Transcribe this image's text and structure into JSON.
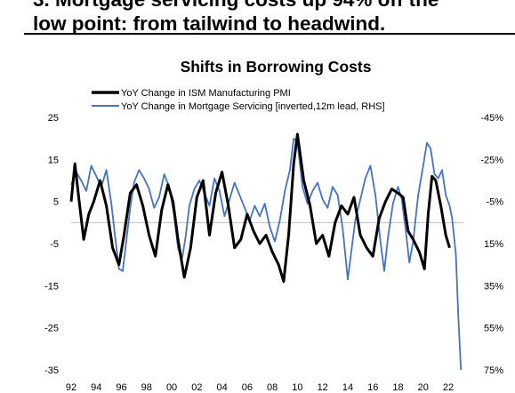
{
  "headline": {
    "line1": "3. Mortgage servicing costs up 94% off the",
    "line2": "low point: from tailwind to headwind."
  },
  "chart_data": {
    "type": "line",
    "title": "Shifts in Borrowing Costs",
    "legend_position": "top-left",
    "x_ticks": [
      "92",
      "94",
      "96",
      "98",
      "00",
      "02",
      "04",
      "06",
      "08",
      "10",
      "12",
      "14",
      "16",
      "18",
      "20",
      "22"
    ],
    "y_left": {
      "range": [
        -35,
        25
      ],
      "ticks": [
        "25",
        "15",
        "5",
        "-5",
        "-15",
        "-25",
        "-35"
      ]
    },
    "y_right": {
      "inverted": true,
      "range": [
        -45,
        75
      ],
      "unit": "%",
      "ticks": [
        "-45%",
        "-25%",
        "-5%",
        "15%",
        "35%",
        "55%",
        "75%"
      ]
    },
    "series": [
      {
        "name": "YoY Change in ISM Manufacturing PMI",
        "color": "#000000",
        "axis": "left",
        "points": [
          [
            1992,
            5
          ],
          [
            1992.3,
            14
          ],
          [
            1992.6,
            6
          ],
          [
            1993,
            -4
          ],
          [
            1993.4,
            2
          ],
          [
            1993.8,
            5
          ],
          [
            1994.3,
            10
          ],
          [
            1994.8,
            4
          ],
          [
            1995.3,
            -6
          ],
          [
            1995.8,
            -10
          ],
          [
            1996.2,
            -3
          ],
          [
            1996.7,
            7
          ],
          [
            1997.2,
            9
          ],
          [
            1997.7,
            4
          ],
          [
            1998.2,
            -3
          ],
          [
            1998.7,
            -8
          ],
          [
            1999.2,
            3
          ],
          [
            1999.7,
            9
          ],
          [
            2000.1,
            5
          ],
          [
            2000.5,
            -4
          ],
          [
            2001,
            -13
          ],
          [
            2001.5,
            -6
          ],
          [
            2002,
            6
          ],
          [
            2002.5,
            10
          ],
          [
            2003,
            -3
          ],
          [
            2003.5,
            7
          ],
          [
            2004,
            12
          ],
          [
            2004.5,
            4
          ],
          [
            2005,
            -6
          ],
          [
            2005.5,
            -4
          ],
          [
            2006,
            2
          ],
          [
            2006.5,
            -2
          ],
          [
            2007,
            -5
          ],
          [
            2007.5,
            -3
          ],
          [
            2008,
            -7
          ],
          [
            2008.5,
            -10
          ],
          [
            2008.9,
            -14
          ],
          [
            2009.3,
            -3
          ],
          [
            2009.7,
            14
          ],
          [
            2010,
            21
          ],
          [
            2010.5,
            10
          ],
          [
            2011,
            4
          ],
          [
            2011.5,
            -5
          ],
          [
            2012,
            -3
          ],
          [
            2012.5,
            -8
          ],
          [
            2013,
            0
          ],
          [
            2013.5,
            4
          ],
          [
            2014,
            2
          ],
          [
            2014.5,
            6
          ],
          [
            2015,
            -3
          ],
          [
            2015.5,
            -6
          ],
          [
            2016,
            -8
          ],
          [
            2016.5,
            1
          ],
          [
            2017,
            5
          ],
          [
            2017.5,
            8
          ],
          [
            2018,
            7
          ],
          [
            2018.4,
            6
          ],
          [
            2018.8,
            -2
          ],
          [
            2019.2,
            -4
          ],
          [
            2019.7,
            -7
          ],
          [
            2020.1,
            -11
          ],
          [
            2020.4,
            2
          ],
          [
            2020.7,
            11
          ],
          [
            2021,
            10
          ],
          [
            2021.4,
            4
          ],
          [
            2021.8,
            -3
          ],
          [
            2022.1,
            -6
          ]
        ]
      },
      {
        "name": "YoY Change in Mortgage Servicing [inverted,12m lead, RHS]",
        "color": "#4472c4",
        "axis": "right",
        "points": [
          [
            1992,
            -13
          ],
          [
            1992.4,
            -19
          ],
          [
            1992.8,
            -15
          ],
          [
            1993.2,
            -10
          ],
          [
            1993.6,
            -22
          ],
          [
            1994,
            -17
          ],
          [
            1994.4,
            -12
          ],
          [
            1994.8,
            -20
          ],
          [
            1995.2,
            -4
          ],
          [
            1995.5,
            12
          ],
          [
            1995.8,
            27
          ],
          [
            1996.1,
            28
          ],
          [
            1996.4,
            13
          ],
          [
            1996.7,
            -2
          ],
          [
            1997,
            -14
          ],
          [
            1997.4,
            -20
          ],
          [
            1997.8,
            -16
          ],
          [
            1998.2,
            -11
          ],
          [
            1998.6,
            -2
          ],
          [
            1999,
            -7
          ],
          [
            1999.4,
            -18
          ],
          [
            1999.8,
            -12
          ],
          [
            2000.2,
            2
          ],
          [
            2000.5,
            17
          ],
          [
            2000.8,
            23
          ],
          [
            2001.1,
            12
          ],
          [
            2001.4,
            -3
          ],
          [
            2001.8,
            -11
          ],
          [
            2002.2,
            -15
          ],
          [
            2002.6,
            -9
          ],
          [
            2003,
            -3
          ],
          [
            2003.4,
            -16
          ],
          [
            2003.8,
            -10
          ],
          [
            2004.2,
            2
          ],
          [
            2004.6,
            -6
          ],
          [
            2005,
            -14
          ],
          [
            2005.4,
            -8
          ],
          [
            2005.8,
            -2
          ],
          [
            2006.2,
            4
          ],
          [
            2006.6,
            -3
          ],
          [
            2007,
            2
          ],
          [
            2007.4,
            -4
          ],
          [
            2007.8,
            7
          ],
          [
            2008.2,
            14
          ],
          [
            2008.6,
            4
          ],
          [
            2009,
            -10
          ],
          [
            2009.4,
            -20
          ],
          [
            2009.7,
            -35
          ],
          [
            2010,
            -33
          ],
          [
            2010.4,
            -12
          ],
          [
            2010.8,
            -4
          ],
          [
            2011.2,
            -10
          ],
          [
            2011.6,
            -14
          ],
          [
            2012,
            -6
          ],
          [
            2012.4,
            -2
          ],
          [
            2012.8,
            -12
          ],
          [
            2013.2,
            -8
          ],
          [
            2013.6,
            8
          ],
          [
            2014,
            32
          ],
          [
            2014.3,
            18
          ],
          [
            2014.6,
            4
          ],
          [
            2015,
            -6
          ],
          [
            2015.4,
            -16
          ],
          [
            2015.8,
            -22
          ],
          [
            2016.2,
            -8
          ],
          [
            2016.6,
            14
          ],
          [
            2016.9,
            28
          ],
          [
            2017.2,
            12
          ],
          [
            2017.6,
            -4
          ],
          [
            2018,
            -12
          ],
          [
            2018.3,
            -6
          ],
          [
            2018.6,
            8
          ],
          [
            2018.9,
            24
          ],
          [
            2019.2,
            14
          ],
          [
            2019.6,
            -8
          ],
          [
            2020,
            -22
          ],
          [
            2020.3,
            -33
          ],
          [
            2020.6,
            -30
          ],
          [
            2020.9,
            -18
          ],
          [
            2021.2,
            -16
          ],
          [
            2021.5,
            -20
          ],
          [
            2021.8,
            -8
          ],
          [
            2022.1,
            -3
          ],
          [
            2022.3,
            3
          ],
          [
            2022.6,
            20
          ],
          [
            2022.8,
            50
          ],
          [
            2023,
            75
          ]
        ]
      }
    ]
  }
}
